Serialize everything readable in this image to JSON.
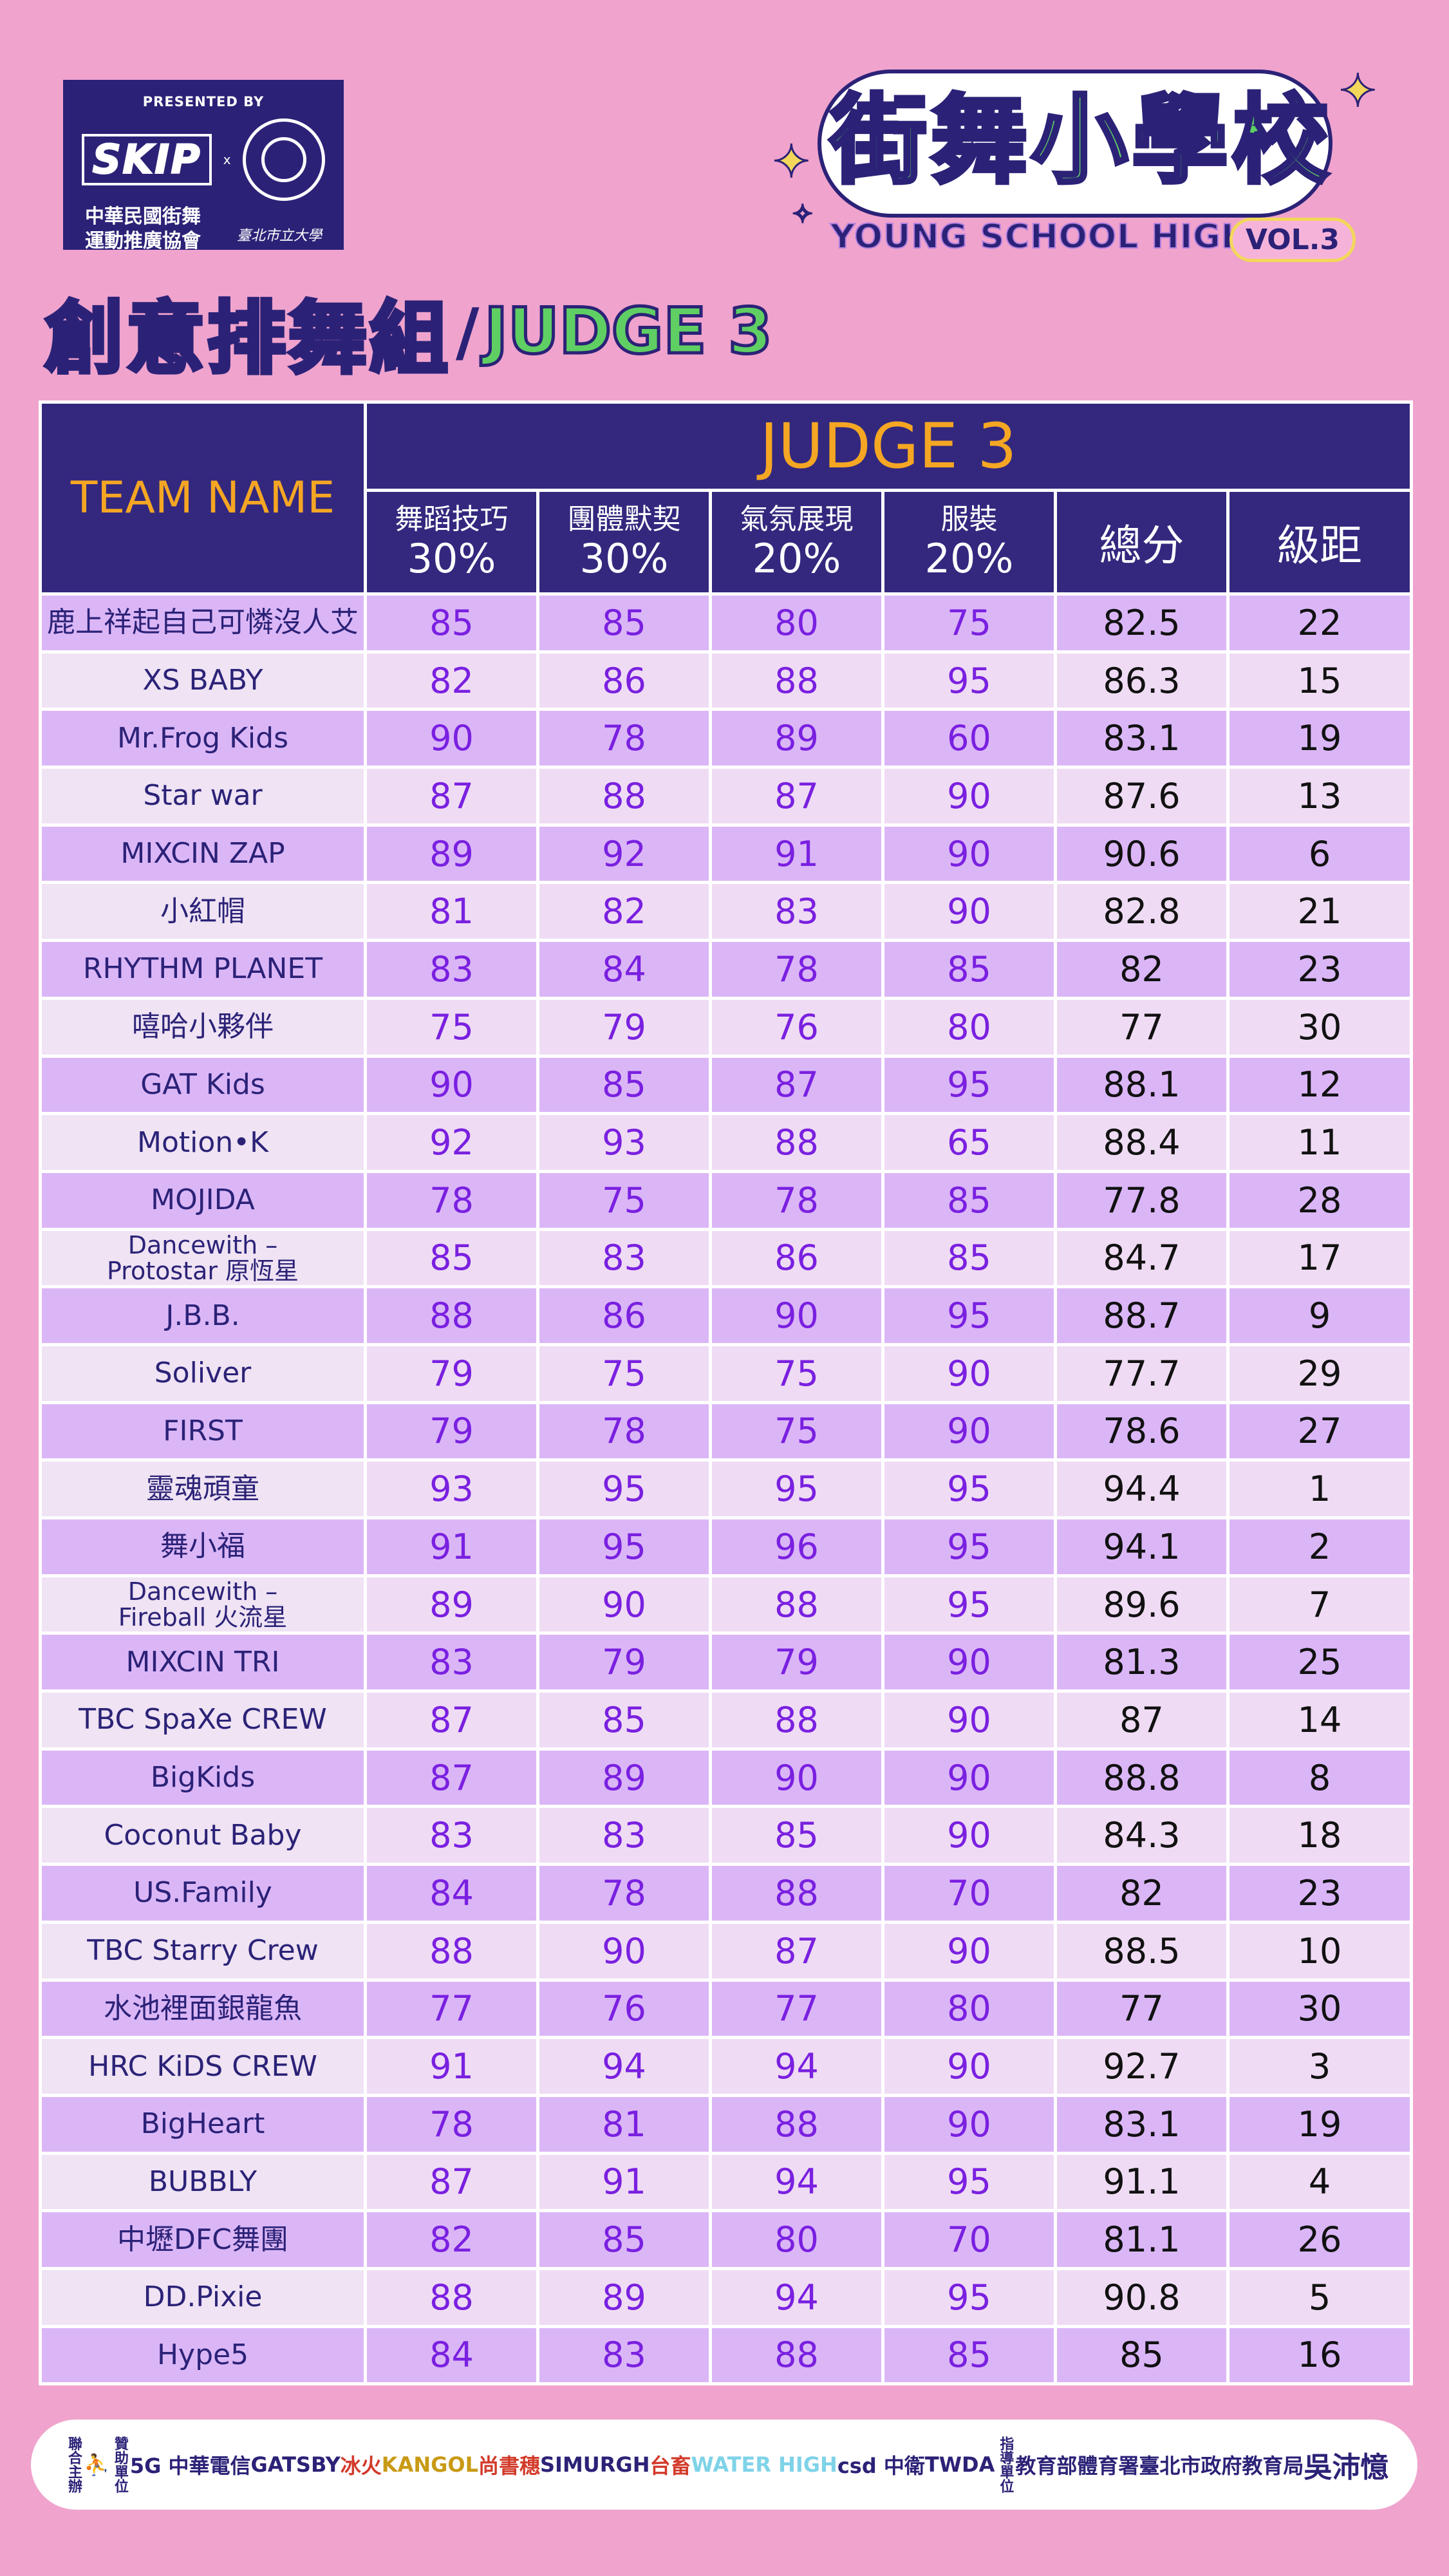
{
  "header": {
    "presented_by": "PRESENTED BY",
    "skip_logo": "SKIP",
    "x": "x",
    "org_name_line1": "中華民國街舞",
    "org_name_line2": "運動推廣協會",
    "univ_name": "臺北市立大學",
    "event_title_cn": "街舞小學校",
    "event_title_en": "YOUNG SCHOOL HIGH",
    "event_vol": "VOL.3"
  },
  "heading": {
    "cn": "創意排舞組",
    "sep": "/",
    "en": "JUDGE 3"
  },
  "table": {
    "team_header": "TEAM NAME",
    "judge_header": "JUDGE 3",
    "criteria": [
      {
        "name": "舞蹈技巧",
        "weight": "30%"
      },
      {
        "name": "團體默契",
        "weight": "30%"
      },
      {
        "name": "氣氛展現",
        "weight": "20%"
      },
      {
        "name": "服裝",
        "weight": "20%"
      }
    ],
    "total_header": "總分",
    "rank_header": "級距",
    "rows": [
      {
        "team": "鹿上祥起自己可憐沒人艾",
        "s1": "85",
        "s2": "85",
        "s3": "80",
        "s4": "75",
        "total": "82.5",
        "rank": "22"
      },
      {
        "team": "XS BABY",
        "s1": "82",
        "s2": "86",
        "s3": "88",
        "s4": "95",
        "total": "86.3",
        "rank": "15"
      },
      {
        "team": "Mr.Frog Kids",
        "s1": "90",
        "s2": "78",
        "s3": "89",
        "s4": "60",
        "total": "83.1",
        "rank": "19"
      },
      {
        "team": "Star war",
        "s1": "87",
        "s2": "88",
        "s3": "87",
        "s4": "90",
        "total": "87.6",
        "rank": "13"
      },
      {
        "team": "MIXCIN ZAP",
        "s1": "89",
        "s2": "92",
        "s3": "91",
        "s4": "90",
        "total": "90.6",
        "rank": "6"
      },
      {
        "team": "小紅帽",
        "s1": "81",
        "s2": "82",
        "s3": "83",
        "s4": "90",
        "total": "82.8",
        "rank": "21"
      },
      {
        "team": "RHYTHM PLANET",
        "s1": "83",
        "s2": "84",
        "s3": "78",
        "s4": "85",
        "total": "82",
        "rank": "23"
      },
      {
        "team": "嘻哈小夥伴",
        "s1": "75",
        "s2": "79",
        "s3": "76",
        "s4": "80",
        "total": "77",
        "rank": "30"
      },
      {
        "team": "GAT Kids",
        "s1": "90",
        "s2": "85",
        "s3": "87",
        "s4": "95",
        "total": "88.1",
        "rank": "12"
      },
      {
        "team": "Motion•K",
        "s1": "92",
        "s2": "93",
        "s3": "88",
        "s4": "65",
        "total": "88.4",
        "rank": "11"
      },
      {
        "team": "MOJIDA",
        "s1": "78",
        "s2": "75",
        "s3": "78",
        "s4": "85",
        "total": "77.8",
        "rank": "28"
      },
      {
        "team": "Dancewith –",
        "team2": "Protostar 原恆星",
        "s1": "85",
        "s2": "83",
        "s3": "86",
        "s4": "85",
        "total": "84.7",
        "rank": "17"
      },
      {
        "team": "J.B.B.",
        "s1": "88",
        "s2": "86",
        "s3": "90",
        "s4": "95",
        "total": "88.7",
        "rank": "9"
      },
      {
        "team": "Soliver",
        "s1": "79",
        "s2": "75",
        "s3": "75",
        "s4": "90",
        "total": "77.7",
        "rank": "29"
      },
      {
        "team": "FIRST",
        "s1": "79",
        "s2": "78",
        "s3": "75",
        "s4": "90",
        "total": "78.6",
        "rank": "27"
      },
      {
        "team": "靈魂頑童",
        "s1": "93",
        "s2": "95",
        "s3": "95",
        "s4": "95",
        "total": "94.4",
        "rank": "1"
      },
      {
        "team": "舞小福",
        "s1": "91",
        "s2": "95",
        "s3": "96",
        "s4": "95",
        "total": "94.1",
        "rank": "2"
      },
      {
        "team": "Dancewith –",
        "team2": "Fireball 火流星",
        "s1": "89",
        "s2": "90",
        "s3": "88",
        "s4": "95",
        "total": "89.6",
        "rank": "7"
      },
      {
        "team": "MIXCIN TRI",
        "s1": "83",
        "s2": "79",
        "s3": "79",
        "s4": "90",
        "total": "81.3",
        "rank": "25"
      },
      {
        "team": "TBC SpaXe CREW",
        "s1": "87",
        "s2": "85",
        "s3": "88",
        "s4": "90",
        "total": "87",
        "rank": "14"
      },
      {
        "team": "BigKids",
        "s1": "87",
        "s2": "89",
        "s3": "90",
        "s4": "90",
        "total": "88.8",
        "rank": "8"
      },
      {
        "team": "Coconut Baby",
        "s1": "83",
        "s2": "83",
        "s3": "85",
        "s4": "90",
        "total": "84.3",
        "rank": "18"
      },
      {
        "team": "US.Family",
        "s1": "84",
        "s2": "78",
        "s3": "88",
        "s4": "70",
        "total": "82",
        "rank": "23"
      },
      {
        "team": "TBC Starry Crew",
        "s1": "88",
        "s2": "90",
        "s3": "87",
        "s4": "90",
        "total": "88.5",
        "rank": "10"
      },
      {
        "team": "水池裡面銀龍魚",
        "s1": "77",
        "s2": "76",
        "s3": "77",
        "s4": "80",
        "total": "77",
        "rank": "30"
      },
      {
        "team": "HRC KiDS CREW",
        "s1": "91",
        "s2": "94",
        "s3": "94",
        "s4": "90",
        "total": "92.7",
        "rank": "3"
      },
      {
        "team": "BigHeart",
        "s1": "78",
        "s2": "81",
        "s3": "88",
        "s4": "90",
        "total": "83.1",
        "rank": "19"
      },
      {
        "team": "BUBBLY",
        "s1": "87",
        "s2": "91",
        "s3": "94",
        "s4": "95",
        "total": "91.1",
        "rank": "4"
      },
      {
        "team": "中壢DFC舞團",
        "s1": "82",
        "s2": "85",
        "s3": "80",
        "s4": "70",
        "total": "81.1",
        "rank": "26"
      },
      {
        "team": "DD.Pixie",
        "s1": "88",
        "s2": "89",
        "s3": "94",
        "s4": "95",
        "total": "90.8",
        "rank": "5"
      },
      {
        "team": "Hype5",
        "s1": "84",
        "s2": "83",
        "s3": "88",
        "s4": "85",
        "total": "85",
        "rank": "16"
      }
    ]
  },
  "sponsors": {
    "co_host_label": "聯合主辦",
    "sponsor_label": "贊助單位",
    "guidance_label": "指導單位",
    "logos": [
      "5G 中華電信",
      "GATSBY",
      "冰火",
      "KANGOL",
      "尚書穗",
      "SIMURGH",
      "台畜",
      "WATER HIGH",
      "csd 中衛",
      "TWDA",
      "教育部體育署",
      "臺北市政府教育局",
      "吳沛憶"
    ]
  },
  "colors": {
    "background": "#f0a3cd",
    "header_navy": "#33287e",
    "orange": "#f5a623",
    "score_purple": "#7a20e0",
    "row_odd": "#dbb6f7",
    "row_even": "#efdcf4",
    "logo_green": "#5fcf63"
  }
}
